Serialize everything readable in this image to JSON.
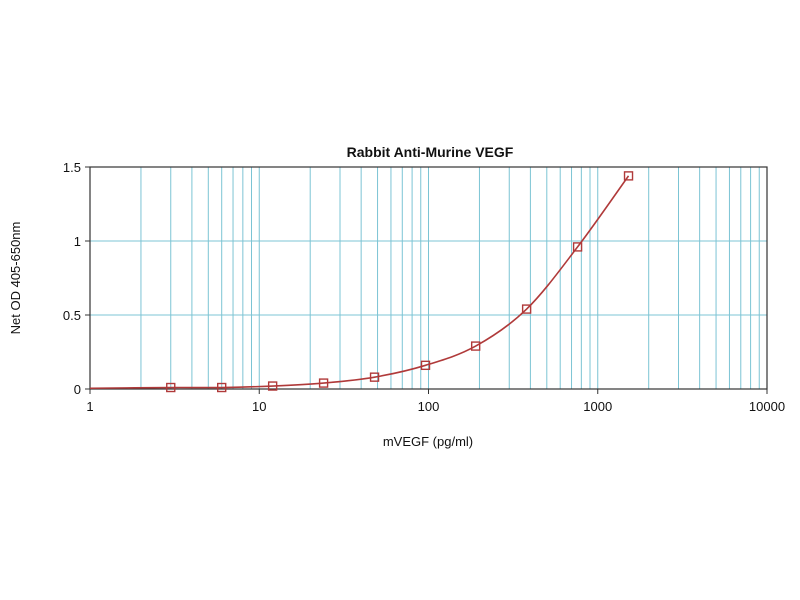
{
  "chart_data": {
    "type": "scatter",
    "title": "Rabbit Anti-Murine VEGF",
    "xlabel": "mVEGF (pg/ml)",
    "ylabel": "Net OD 405-650nm",
    "x_scale": "log",
    "xlim": [
      1,
      10000
    ],
    "ylim": [
      0,
      1.5
    ],
    "x_ticks": [
      1,
      10,
      100,
      1000,
      10000
    ],
    "x_tick_labels": [
      "1",
      "10",
      "100",
      "1000",
      "10000"
    ],
    "y_ticks": [
      0,
      0.5,
      1,
      1.5
    ],
    "y_tick_labels": [
      "0",
      "0.5",
      "1",
      "1.5"
    ],
    "grid": true,
    "series": [
      {
        "x": [
          3,
          6,
          12,
          24,
          48,
          96,
          190,
          380,
          760,
          1520
        ],
        "y": [
          0.01,
          0.01,
          0.02,
          0.04,
          0.08,
          0.16,
          0.29,
          0.54,
          0.96,
          1.44
        ],
        "marker": "open-square",
        "fit_line": true
      }
    ],
    "colors": {
      "grid": "#7cc4d4",
      "series": "#b03a3a",
      "frame": "#333333"
    }
  }
}
